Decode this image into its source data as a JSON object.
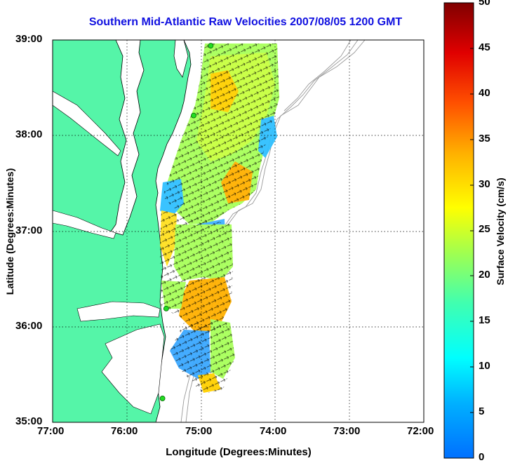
{
  "title": "Southern Mid-Atlantic Raw Velocities 2007/08/05 1200 GMT",
  "xlabel": "Longitude (Degrees:Minutes)",
  "ylabel": "Latitude (Degrees:Minutes)",
  "colorbar": {
    "label": "Surface Velocity (cm/s)",
    "ticks": [
      "0",
      "5",
      "10",
      "15",
      "20",
      "25",
      "30",
      "35",
      "40",
      "45",
      "50"
    ],
    "range": [
      0,
      50
    ]
  },
  "axes": {
    "x_ticks": [
      "77:00",
      "76:00",
      "75:00",
      "74:00",
      "73:00",
      "72:00"
    ],
    "y_ticks": [
      "39:00",
      "38:00",
      "37:00",
      "36:00",
      "35:00"
    ],
    "xlim": [
      -77,
      -72
    ],
    "ylim": [
      35,
      39
    ],
    "grid": true
  },
  "colors": {
    "land": "#55f5a8",
    "water": "#ffffff",
    "title": "#1010e0",
    "station": "#22dd22",
    "bathymetry": "#999999"
  },
  "stations": [
    {
      "lon": -74.87,
      "lat": 38.94
    },
    {
      "lon": -75.1,
      "lat": 38.21
    },
    {
      "lon": -75.47,
      "lat": 36.19
    },
    {
      "lon": -75.52,
      "lat": 35.25
    }
  ]
}
